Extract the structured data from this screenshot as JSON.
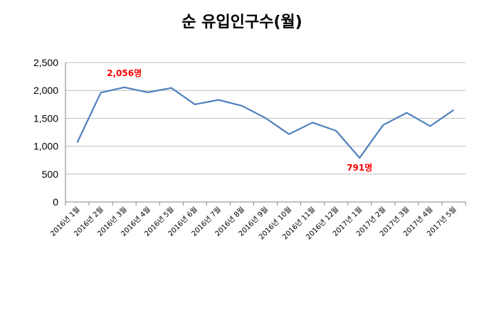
{
  "chart_data": {
    "type": "line",
    "title": "순 유입인구수(월)",
    "categories": [
      "2016년 1월",
      "2016년 2월",
      "2016년 3월",
      "2016년 4월",
      "2016년 5월",
      "2016년 6월",
      "2016년 7월",
      "2016년 8월",
      "2016년 9월",
      "2016년 10월",
      "2016년 11월",
      "2016년 12월",
      "2017년 1월",
      "2017년 2월",
      "2017년 3월",
      "2017년 4월",
      "2017년 5월"
    ],
    "series": [
      {
        "values": [
          1065,
          1960,
          2056,
          1965,
          2045,
          1750,
          1830,
          1725,
          1505,
          1215,
          1425,
          1275,
          791,
          1380,
          1600,
          1360,
          1650
        ],
        "color": "#4f81bd"
      }
    ],
    "ylim": [
      0,
      2500
    ],
    "yticks": [
      0,
      500,
      1000,
      1500,
      2000,
      2500
    ],
    "ytick_labels": [
      "0",
      "500",
      "1,000",
      "1,500",
      "2,000",
      "2,500"
    ],
    "grid": true,
    "legend": "none",
    "annotations": [
      {
        "index": 2,
        "text": "2,056명",
        "position": "above",
        "color": "#ff0000"
      },
      {
        "index": 12,
        "text": "791명",
        "position": "below",
        "color": "#ff0000"
      }
    ]
  }
}
